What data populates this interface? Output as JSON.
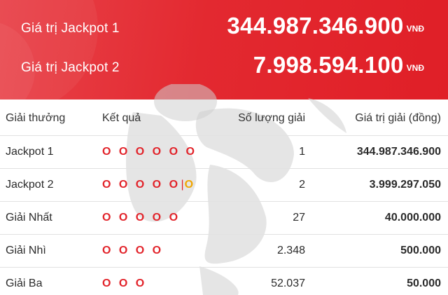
{
  "banner": {
    "jackpots": [
      {
        "label": "Giá trị Jackpot 1",
        "value": "344.987.346.900",
        "currency": "VNĐ"
      },
      {
        "label": "Giá trị Jackpot 2",
        "value": "7.998.594.100",
        "currency": "VNĐ"
      }
    ],
    "colors": {
      "banner_red": "#e32930",
      "value_red": "#e2232a",
      "bonus_gold": "#f0a500"
    }
  },
  "table": {
    "headers": [
      "Giải thưởng",
      "Kết quả",
      "Số lượng giải",
      "Giá trị giải (đồng)"
    ],
    "rows": [
      {
        "prize": "Jackpot 1",
        "result": "O O O O O O",
        "count": "1",
        "value": "344.987.346.900"
      },
      {
        "prize": "Jackpot 2",
        "result": "O O O O O",
        "bonus_sep": "|",
        "bonus": "O",
        "count": "2",
        "value": "3.999.297.050"
      },
      {
        "prize": "Giải Nhất",
        "result": "O O O O O",
        "count": "27",
        "value": "40.000.000"
      },
      {
        "prize": "Giải Nhì",
        "result": "O O O O",
        "count": "2.348",
        "value": "500.000"
      },
      {
        "prize": "Giải Ba",
        "result": "O O O",
        "count": "52.037",
        "value": "50.000"
      }
    ]
  }
}
